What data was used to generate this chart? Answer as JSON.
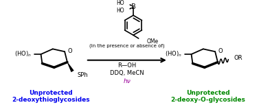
{
  "bg_color": "#ffffff",
  "text_color_black": "#000000",
  "text_color_blue": "#0000ee",
  "text_color_green": "#008800",
  "text_color_purple": "#990099",
  "label_left_line1": "Unprotected",
  "label_left_line2": "2-deoxythioglycosides",
  "label_right_line1": "Unprotected",
  "label_right_line2": "2-deoxy-O-glycosides",
  "arrow_above": "(In the presence or absence of)",
  "reagent1": "R—OH",
  "reagent2": "DDQ, MeCN",
  "reagent3": "hν"
}
